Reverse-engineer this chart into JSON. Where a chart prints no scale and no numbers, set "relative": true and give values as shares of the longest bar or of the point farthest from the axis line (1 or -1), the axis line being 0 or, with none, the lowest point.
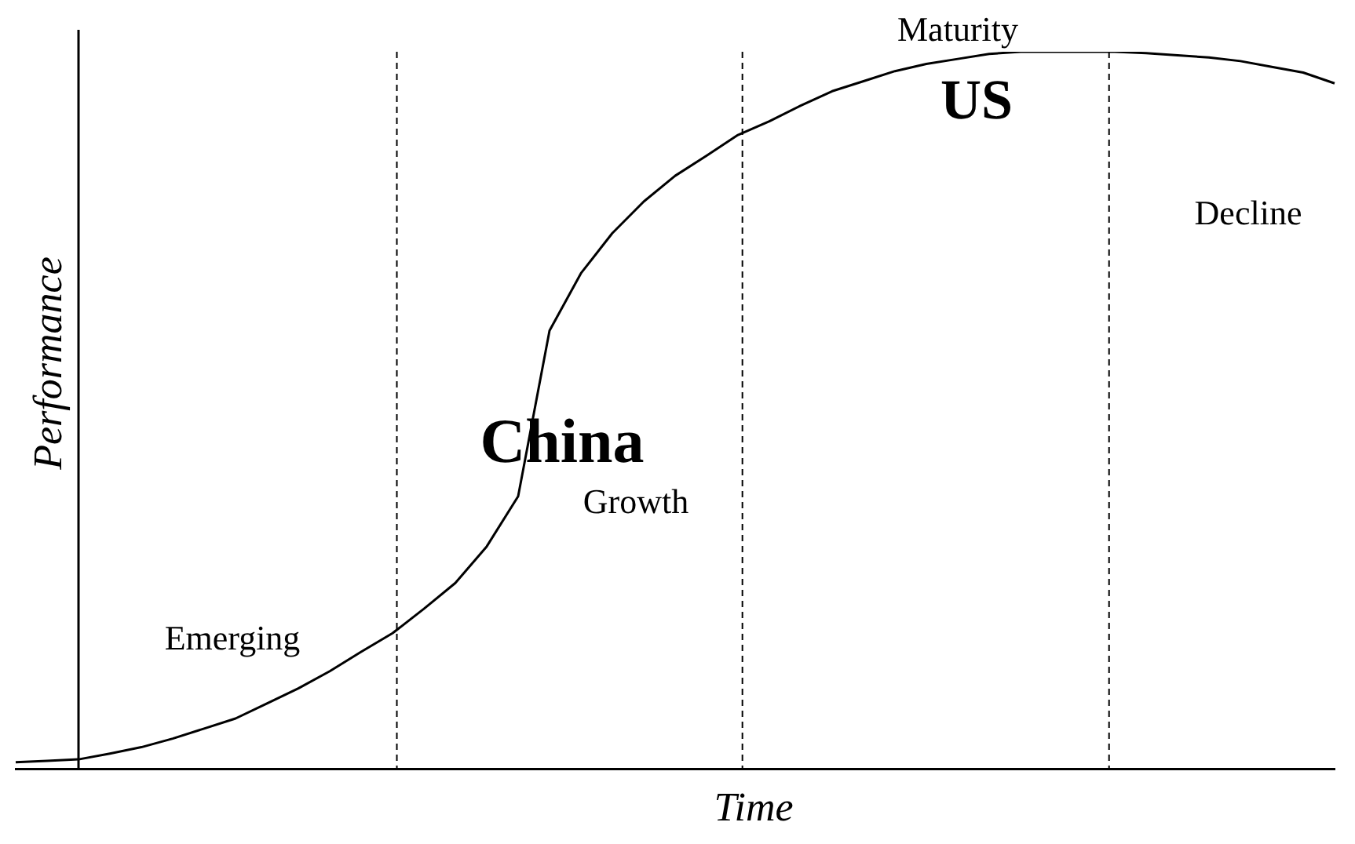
{
  "chart_data": {
    "type": "line",
    "relative": true,
    "xlabel": "Time",
    "ylabel": "Performance",
    "marker": "none",
    "line_style": "solid",
    "categories": [
      null,
      null,
      null,
      null,
      null,
      null,
      null,
      null,
      null,
      null,
      null,
      null,
      null,
      null,
      null,
      null,
      null,
      null,
      null,
      null,
      null,
      null,
      null,
      null,
      null,
      null,
      null,
      null,
      null,
      null,
      null,
      null,
      null,
      null,
      null,
      null,
      null,
      null,
      null,
      null,
      null,
      null,
      null
    ],
    "series": [
      {
        "color": "#000000",
        "values": [
          0.009,
          0.011,
          0.013,
          0.021,
          0.03,
          0.042,
          0.056,
          0.07,
          0.091,
          0.112,
          0.136,
          0.163,
          0.189,
          0.223,
          0.259,
          0.31,
          0.38,
          0.611,
          0.691,
          0.747,
          0.791,
          0.827,
          0.855,
          0.884,
          0.903,
          0.925,
          0.945,
          0.959,
          0.973,
          0.983,
          0.99,
          0.997,
          1,
          1,
          1,
          1,
          0.998,
          0.995,
          0.992,
          0.987,
          0.979,
          0.971,
          0.956
        ]
      }
    ],
    "annotations": [
      "Emerging",
      "China",
      "Growth",
      "Maturity",
      "US",
      "Decline"
    ]
  }
}
